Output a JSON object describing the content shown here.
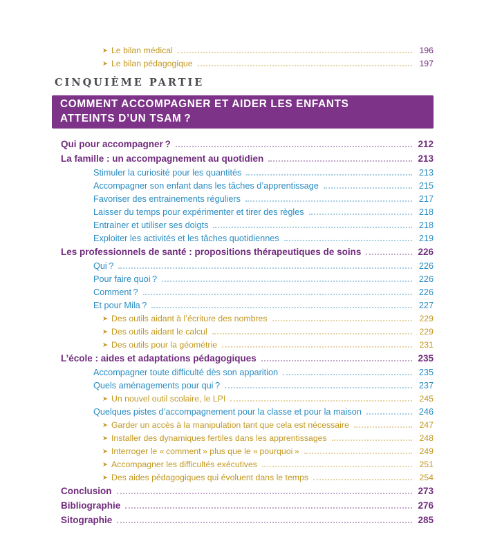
{
  "document": {
    "icons": {
      "arrow_right": "➤"
    },
    "colors": {
      "banner_background": "#7d3388",
      "banner_text": "#ffffff",
      "heading_purple": "#702b7d",
      "subentry_blue": "#2a8cc2",
      "arrow_entry_gold": "#c2971f",
      "part_label_gray": "#4a4a50"
    },
    "pre_section_entries": [
      {
        "label": "Le bilan médical",
        "page": "196",
        "level": "l3",
        "color": "gold",
        "page_color": "purple"
      },
      {
        "label": "Le bilan pédagogique",
        "page": "197",
        "level": "l3",
        "color": "gold",
        "page_color": "purple"
      }
    ],
    "part": {
      "label": "CINQUIÈME PARTIE",
      "title_line1": "COMMENT ACCOMPAGNER ET AIDER LES ENFANTS",
      "title_line2": "ATTEINTS D’UN TSAM ?"
    },
    "toc_entries": [
      {
        "label": "Qui pour accompagner ?",
        "page": "212",
        "level": "l1",
        "color": "purple"
      },
      {
        "label": "La famille : un accompagnement au quotidien",
        "page": "213",
        "level": "l1",
        "color": "purple"
      },
      {
        "label": "Stimuler la curiosité pour les quantités",
        "page": "213",
        "level": "l2",
        "color": "blue"
      },
      {
        "label": "Accompagner son enfant dans les tâches d’apprentissage",
        "page": "215",
        "level": "l2",
        "color": "blue"
      },
      {
        "label": "Favoriser des entrainements réguliers",
        "page": "217",
        "level": "l2",
        "color": "blue"
      },
      {
        "label": "Laisser du temps pour expérimenter et tirer des règles",
        "page": "218",
        "level": "l2",
        "color": "blue"
      },
      {
        "label": "Entrainer et utiliser ses doigts",
        "page": "218",
        "level": "l2",
        "color": "blue"
      },
      {
        "label": "Exploiter les activités et les tâches quotidiennes",
        "page": "219",
        "level": "l2",
        "color": "blue"
      },
      {
        "label": "Les professionnels de santé : propositions thérapeutiques de soins",
        "page": "226",
        "level": "l1",
        "color": "purple"
      },
      {
        "label": "Qui ?",
        "page": "226",
        "level": "l2",
        "color": "blue"
      },
      {
        "label": "Pour faire quoi ?",
        "page": "226",
        "level": "l2",
        "color": "blue"
      },
      {
        "label": "Comment ?",
        "page": "226",
        "level": "l2",
        "color": "blue"
      },
      {
        "label": "Et pour Mila ?",
        "page": "227",
        "level": "l2",
        "color": "blue"
      },
      {
        "label": "Des outils aidant à l’écriture des nombres",
        "page": "229",
        "level": "l3",
        "color": "gold"
      },
      {
        "label": "Des outils aidant le calcul",
        "page": "229",
        "level": "l3",
        "color": "gold"
      },
      {
        "label": "Des outils pour la géométrie",
        "page": "231",
        "level": "l3",
        "color": "gold"
      },
      {
        "label": "L’école : aides et adaptations pédagogiques",
        "page": "235",
        "level": "l1",
        "color": "purple"
      },
      {
        "label": "Accompagner toute difficulté dès son apparition",
        "page": "235",
        "level": "l2",
        "color": "blue"
      },
      {
        "label": "Quels aménagements pour qui ?",
        "page": "237",
        "level": "l2",
        "color": "blue"
      },
      {
        "label": "Un nouvel outil scolaire, le LPI",
        "page": "245",
        "level": "l3",
        "color": "gold"
      },
      {
        "label": "Quelques pistes d’accompagnement pour la classe et pour la maison",
        "page": "246",
        "level": "l2",
        "color": "blue"
      },
      {
        "label": "Garder un accès à la manipulation tant que cela est nécessaire",
        "page": "247",
        "level": "l3",
        "color": "gold"
      },
      {
        "label": "Installer des dynamiques fertiles dans les apprentissages",
        "page": "248",
        "level": "l3",
        "color": "gold"
      },
      {
        "label": "Interroger le « comment » plus que le « pourquoi »",
        "page": "249",
        "level": "l3",
        "color": "gold"
      },
      {
        "label": "Accompagner les difficultés exécutives",
        "page": "251",
        "level": "l3",
        "color": "gold"
      },
      {
        "label": "Des aides pédagogiques qui évoluent dans le temps",
        "page": "254",
        "level": "l3",
        "color": "gold"
      },
      {
        "label": "Conclusion",
        "page": "273",
        "level": "l1",
        "color": "purple"
      },
      {
        "label": "Bibliographie",
        "page": "276",
        "level": "l1",
        "color": "purple"
      },
      {
        "label": "Sitographie",
        "page": "285",
        "level": "l1",
        "color": "purple"
      }
    ]
  }
}
